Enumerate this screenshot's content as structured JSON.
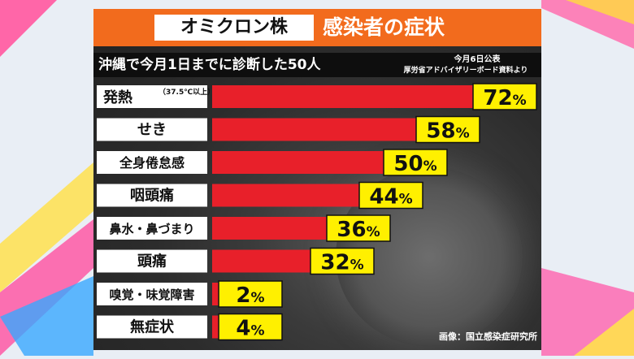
{
  "title": {
    "virus": "オミクロン株",
    "topic": "感染者の症状"
  },
  "subtitle": "沖縄で今月1日までに診断した50人",
  "source": {
    "date": "今月6日公表",
    "org": "厚労省アドバイザリーボード資料より"
  },
  "image_credit": "画像：国立感染症研究所",
  "colors": {
    "title_band": "#f26b1d",
    "bar": "#e8202a",
    "value_box": "#fff000",
    "label_box": "#ffffff"
  },
  "chart_data": {
    "type": "bar",
    "orientation": "horizontal",
    "categories": [
      "発熱",
      "せき",
      "全身倦怠感",
      "咽頭痛",
      "鼻水・鼻づまり",
      "頭痛",
      "嗅覚・味覚障害",
      "無症状"
    ],
    "category_notes": {
      "発熱": "（37.5℃以上）"
    },
    "values": [
      72,
      58,
      50,
      44,
      36,
      32,
      2,
      4
    ],
    "unit": "%",
    "xlim": [
      0,
      100
    ],
    "title": "オミクロン株 感染者の症状",
    "xlabel": "",
    "ylabel": "",
    "grid": false,
    "legend": "none"
  }
}
